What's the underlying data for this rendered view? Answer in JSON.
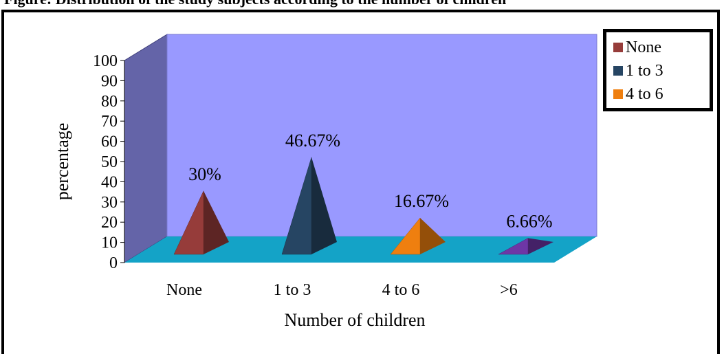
{
  "caption": "Figure: Distribution of the study subjects according to the number of children",
  "legend": {
    "items": [
      {
        "label": "None",
        "color": "#963c3a"
      },
      {
        "label": "1 to 3",
        "color": "#264563"
      },
      {
        "label": "4 to 6",
        "color": "#ef7f0f"
      }
    ]
  },
  "chart_data": {
    "type": "bar",
    "style": "3d-pyramid",
    "categories": [
      "None",
      "1 to 3",
      "4 to 6",
      ">6"
    ],
    "values": [
      30,
      46.67,
      16.67,
      6.66
    ],
    "data_labels": [
      "30%",
      "46.67%",
      "16.67%",
      "6.66%"
    ],
    "colors": [
      "#963c3a",
      "#264563",
      "#ef7f0f",
      "#6e36a6"
    ],
    "xlabel": "Number of children",
    "ylabel": "percentage",
    "ylim": [
      0,
      100
    ],
    "yticks": [
      0,
      10,
      20,
      30,
      40,
      50,
      60,
      70,
      80,
      90,
      100
    ],
    "grid": false,
    "legend_position": "top-right",
    "wall_color": "#9999ff",
    "side_wall_color": "#6464a8",
    "floor_color": "#14a3c7"
  }
}
